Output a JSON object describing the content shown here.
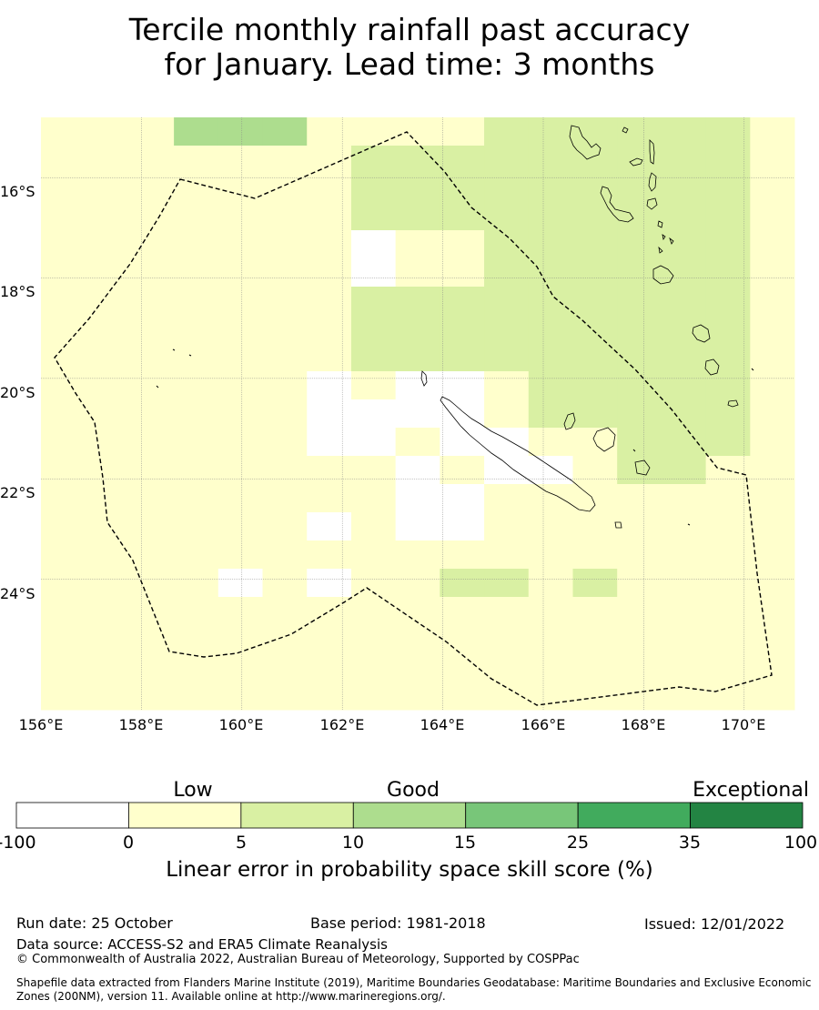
{
  "title": {
    "line1": "Tercile monthly rainfall past accuracy",
    "line2": "for January. Lead time: 3 months"
  },
  "map": {
    "lon_range": [
      156.0,
      171.0
    ],
    "lat_range": [
      -26.6,
      -14.8
    ],
    "lat_labels": [
      "16°S",
      "18°S",
      "20°S",
      "22°S",
      "24°S"
    ],
    "lon_labels": [
      "156°E",
      "158°E",
      "160°E",
      "162°E",
      "164°E",
      "166°E",
      "168°E",
      "170°E"
    ],
    "gridlines": true,
    "boundary": "dashed black line (maritime boundary / EEZ)",
    "grid_rows": [
      "11133311112222221",
      "11111112222222221",
      "11111112222222221",
      "11111112222222221",
      "11111110112222221",
      "11111110112222221",
      "11111112222222221",
      "11111112222222221",
      "11111112222222221",
      "11111101001222221",
      "11111100001222221",
      "11111100100112221",
      "11111111010012211",
      "11111111001111111",
      "11111101001111111",
      "11111111111111111",
      "11110101122121111",
      "11111111111111111",
      "11111111111111111",
      "11111111111111111",
      "11111111111111111"
    ]
  },
  "colorbar": {
    "categories": [
      "Low",
      "Good",
      "Exceptional"
    ],
    "ticks": [
      "-100",
      "0",
      "5",
      "10",
      "15",
      "25",
      "35",
      "100"
    ],
    "colors": [
      "#ffffff",
      "#ffffcc",
      "#d9f0a3",
      "#addd8e",
      "#78c679",
      "#41ab5d",
      "#238443"
    ],
    "title": "Linear error in probability space skill score (%)"
  },
  "footer": {
    "run_date": "Run date: 25 October",
    "base_period": "Base period: 1981-2018",
    "issued": "Issued: 12/01/2022",
    "data_source": "Data source: ACCESS-S2 and ERA5 Climate Reanalysis",
    "copyright": "© Commonwealth of Australia 2022, Australian Bureau of Meteorology, Supported by COSPPac",
    "shapefile": "Shapefile data extracted from Flanders Marine Institute (2019), Maritime Boundaries Geodatabase: Maritime Boundaries and Exclusive Economic Zones (200NM), version 11. Available online at http://www.marineregions.org/."
  }
}
